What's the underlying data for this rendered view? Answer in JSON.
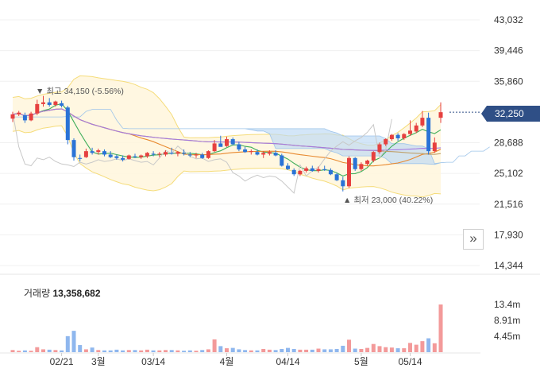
{
  "chart_data": [
    {
      "type": "candlestick",
      "y_ticks": [
        "43,032",
        "39,446",
        "35,860",
        "32,250",
        "28,688",
        "25,102",
        "21,516",
        "17,930",
        "14,344"
      ],
      "x_ticks": [
        "02/21",
        "3월",
        "03/14",
        "4월",
        "04/14",
        "5월",
        "05/14"
      ],
      "ylim": [
        14344,
        43032
      ],
      "current_price": "32,250",
      "high_annotation": {
        "label": "최고",
        "value": "34,150",
        "pct": "(-5.56%)"
      },
      "low_annotation": {
        "label": "최저",
        "value": "23,000",
        "pct": "(40.22%)"
      },
      "candles": [
        [
          31500,
          32300,
          31100,
          32000
        ],
        [
          32000,
          32400,
          31800,
          32200
        ],
        [
          31900,
          32200,
          31000,
          31300
        ],
        [
          31300,
          32300,
          31200,
          32100
        ],
        [
          32100,
          33700,
          31900,
          33200
        ],
        [
          33200,
          34150,
          32900,
          33400
        ],
        [
          33400,
          33900,
          32900,
          33100
        ],
        [
          33100,
          33600,
          32900,
          33500
        ],
        [
          33300,
          33600,
          32800,
          33000
        ],
        [
          32800,
          33000,
          28500,
          29000
        ],
        [
          29000,
          29200,
          26600,
          27000
        ],
        [
          26900,
          27300,
          26500,
          26800
        ],
        [
          27000,
          28000,
          26900,
          27700
        ],
        [
          27700,
          28100,
          27300,
          27500
        ],
        [
          27600,
          28000,
          27300,
          27800
        ],
        [
          27700,
          27900,
          27100,
          27300
        ],
        [
          27300,
          27700,
          26900,
          27000
        ],
        [
          27100,
          27300,
          26700,
          26900
        ],
        [
          26900,
          27200,
          26500,
          26700
        ],
        [
          26800,
          27300,
          26700,
          27200
        ],
        [
          27100,
          27400,
          26900,
          27000
        ],
        [
          27000,
          27300,
          26800,
          27200
        ],
        [
          27100,
          27600,
          26900,
          27500
        ],
        [
          27400,
          27700,
          27100,
          27300
        ],
        [
          27300,
          27600,
          27000,
          27400
        ],
        [
          27300,
          27800,
          27100,
          27600
        ],
        [
          27500,
          28100,
          27300,
          27400
        ],
        [
          27400,
          27700,
          27100,
          27600
        ],
        [
          27500,
          27900,
          27200,
          27400
        ],
        [
          27300,
          27600,
          27000,
          27200
        ],
        [
          27200,
          27500,
          26900,
          27300
        ],
        [
          27300,
          27500,
          26800,
          26900
        ],
        [
          26900,
          27800,
          26800,
          27700
        ],
        [
          27700,
          29000,
          27600,
          28600
        ],
        [
          28600,
          29500,
          28400,
          28200
        ],
        [
          28300,
          29400,
          28200,
          29100
        ],
        [
          29100,
          29300,
          28400,
          28500
        ],
        [
          28500,
          28800,
          27700,
          27900
        ],
        [
          27900,
          28200,
          27500,
          27600
        ],
        [
          27600,
          27900,
          27300,
          27700
        ],
        [
          27600,
          27900,
          27200,
          27300
        ],
        [
          27300,
          27700,
          26900,
          27500
        ],
        [
          27400,
          27800,
          27200,
          27600
        ],
        [
          27500,
          27800,
          27100,
          27200
        ],
        [
          27200,
          27400,
          25900,
          26000
        ],
        [
          26000,
          26300,
          25500,
          25600
        ],
        [
          25500,
          25700,
          24800,
          25000
        ],
        [
          25000,
          25500,
          24800,
          25400
        ],
        [
          25400,
          25900,
          25200,
          25700
        ],
        [
          25700,
          26000,
          25300,
          25400
        ],
        [
          25400,
          25900,
          25200,
          25600
        ],
        [
          25600,
          26000,
          25400,
          25500
        ],
        [
          25500,
          25700,
          24900,
          25000
        ],
        [
          25000,
          25200,
          24200,
          24300
        ],
        [
          24300,
          24700,
          23000,
          23600
        ],
        [
          23600,
          27100,
          23400,
          26900
        ],
        [
          26900,
          27000,
          25400,
          25600
        ],
        [
          25600,
          26400,
          25400,
          26200
        ],
        [
          26200,
          26700,
          26000,
          26600
        ],
        [
          26600,
          27700,
          26400,
          27600
        ],
        [
          27600,
          28700,
          27400,
          28500
        ],
        [
          28500,
          29200,
          28300,
          29100
        ],
        [
          29100,
          29700,
          28900,
          29600
        ],
        [
          29600,
          29800,
          28900,
          29200
        ],
        [
          29200,
          29800,
          29000,
          29700
        ],
        [
          29700,
          31300,
          29500,
          30100
        ],
        [
          30000,
          31000,
          29800,
          30700
        ],
        [
          30700,
          32400,
          30500,
          31600
        ],
        [
          31600,
          32200,
          27300,
          27700
        ],
        [
          27700,
          29300,
          27500,
          28700
        ],
        [
          31600,
          33400,
          31000,
          32250
        ]
      ],
      "volume": {
        "title": "거래량",
        "value": "13,358,682",
        "y_ticks": [
          "13.4m",
          "8.91m",
          "4.45m"
        ],
        "values_m": [
          0.6,
          0.4,
          0.5,
          0.4,
          1.4,
          0.8,
          0.7,
          0.6,
          0.5,
          4.5,
          6.0,
          2.0,
          0.8,
          1.3,
          0.6,
          0.5,
          0.5,
          0.7,
          0.5,
          0.6,
          0.6,
          0.5,
          0.7,
          0.5,
          0.5,
          0.6,
          0.6,
          0.5,
          0.4,
          0.5,
          0.4,
          0.6,
          0.8,
          3.6,
          1.7,
          1.1,
          1.2,
          0.8,
          0.6,
          0.5,
          0.5,
          0.9,
          0.7,
          0.6,
          0.9,
          1.2,
          0.9,
          0.7,
          0.7,
          0.7,
          1.0,
          0.8,
          0.8,
          0.9,
          1.8,
          3.5,
          1.0,
          0.9,
          1.2,
          2.3,
          1.7,
          1.4,
          1.3,
          1.1,
          1.1,
          2.6,
          2.1,
          3.1,
          3.9,
          2.5,
          13.4
        ]
      }
    }
  ]
}
